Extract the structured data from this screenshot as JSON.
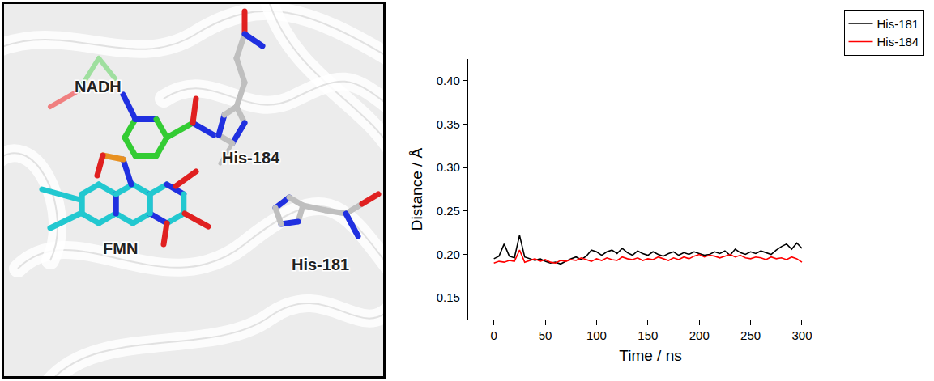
{
  "structure_panel": {
    "labels": [
      "NADH",
      "FMN",
      "His-184",
      "His-181"
    ]
  },
  "chart_data": {
    "type": "line",
    "x_label": "Time / ns",
    "y_label": "Distance / Å",
    "xlim": [
      -25,
      330
    ],
    "xticks": [
      0,
      50,
      100,
      150,
      200,
      250,
      300
    ],
    "ylim": [
      0.125,
      0.425
    ],
    "yticks": [
      {
        "value": 0.15,
        "label": "0.15"
      },
      {
        "value": 0.2,
        "label": "0.20"
      },
      0.25,
      {
        "value": 0.3,
        "label": "0.30"
      },
      0.35,
      {
        "value": 0.4,
        "label": "0.40"
      }
    ],
    "grid": false,
    "legend": "top-right",
    "x": [
      0,
      5,
      10,
      15,
      20,
      25,
      30,
      35,
      40,
      45,
      50,
      55,
      60,
      65,
      70,
      75,
      80,
      85,
      90,
      95,
      100,
      105,
      110,
      115,
      120,
      125,
      130,
      135,
      140,
      145,
      150,
      155,
      160,
      165,
      170,
      175,
      180,
      185,
      190,
      195,
      200,
      205,
      210,
      215,
      220,
      225,
      230,
      235,
      240,
      245,
      250,
      255,
      260,
      265,
      270,
      275,
      280,
      285,
      290,
      295,
      300
    ],
    "series": [
      {
        "name": "His-181",
        "color": "#000000",
        "values": [
          0.195,
          0.198,
          0.212,
          0.198,
          0.196,
          0.222,
          0.197,
          0.195,
          0.193,
          0.195,
          0.192,
          0.19,
          0.191,
          0.189,
          0.192,
          0.195,
          0.197,
          0.194,
          0.198,
          0.205,
          0.203,
          0.199,
          0.203,
          0.205,
          0.201,
          0.207,
          0.202,
          0.199,
          0.204,
          0.201,
          0.199,
          0.203,
          0.2,
          0.198,
          0.201,
          0.203,
          0.199,
          0.202,
          0.2,
          0.203,
          0.201,
          0.199,
          0.2,
          0.203,
          0.201,
          0.204,
          0.199,
          0.206,
          0.202,
          0.2,
          0.203,
          0.201,
          0.204,
          0.202,
          0.2,
          0.205,
          0.209,
          0.212,
          0.206,
          0.213,
          0.207
        ]
      },
      {
        "name": "His-184",
        "color": "#ff0000",
        "values": [
          0.19,
          0.192,
          0.191,
          0.193,
          0.192,
          0.205,
          0.191,
          0.193,
          0.195,
          0.192,
          0.194,
          0.191,
          0.19,
          0.193,
          0.192,
          0.194,
          0.193,
          0.196,
          0.194,
          0.192,
          0.195,
          0.193,
          0.196,
          0.194,
          0.193,
          0.197,
          0.195,
          0.194,
          0.196,
          0.193,
          0.195,
          0.194,
          0.197,
          0.195,
          0.193,
          0.196,
          0.194,
          0.197,
          0.195,
          0.198,
          0.2,
          0.197,
          0.199,
          0.198,
          0.196,
          0.198,
          0.2,
          0.197,
          0.199,
          0.196,
          0.195,
          0.197,
          0.196,
          0.194,
          0.197,
          0.195,
          0.196,
          0.194,
          0.197,
          0.195,
          0.191
        ]
      }
    ]
  }
}
